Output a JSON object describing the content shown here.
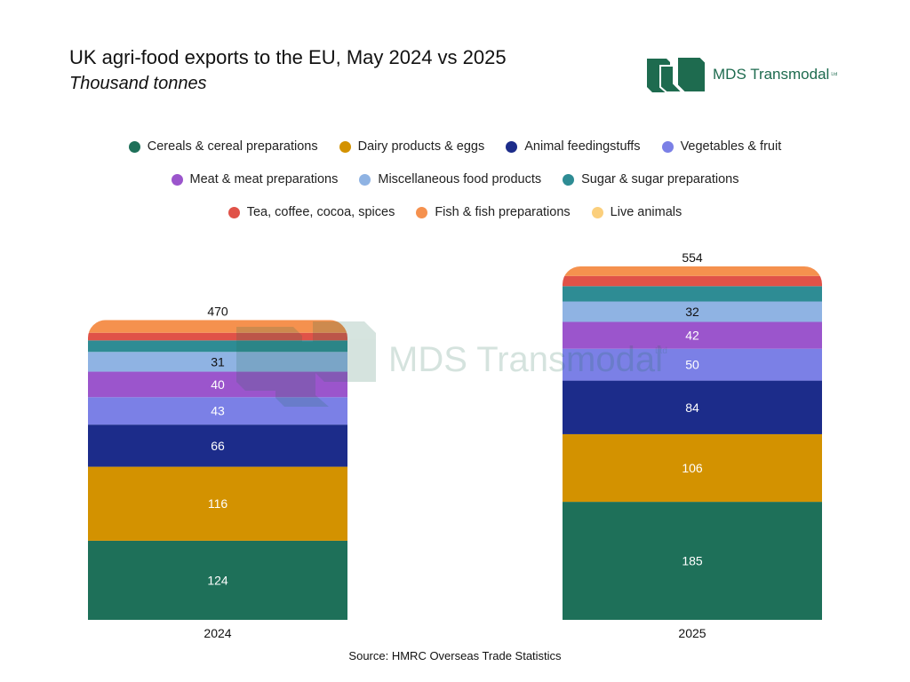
{
  "chart_data": {
    "type": "bar",
    "stacked": true,
    "title": "UK agri-food exports to the EU, May 2024 vs 2025",
    "subtitle": "Thousand tonnes",
    "source": "Source: HMRC Overseas Trade Statistics",
    "categories": [
      "2024",
      "2025"
    ],
    "totals": [
      470,
      554
    ],
    "legend_placement": "top",
    "grid": false,
    "series": [
      {
        "name": "Cereals & cereal preparations",
        "color": "#1e7059",
        "values": [
          124,
          185
        ],
        "labeled": true
      },
      {
        "name": "Dairy products & eggs",
        "color": "#d39200",
        "values": [
          116,
          106
        ],
        "labeled": true
      },
      {
        "name": "Animal feedingstuffs",
        "color": "#1c2c8a",
        "values": [
          66,
          84
        ],
        "labeled": true
      },
      {
        "name": "Vegetables & fruit",
        "color": "#7b80e6",
        "values": [
          43,
          50
        ],
        "labeled": true
      },
      {
        "name": "Meat & meat preparations",
        "color": "#9b55cc",
        "values": [
          40,
          42
        ],
        "labeled": true
      },
      {
        "name": "Miscellaneous food products",
        "color": "#8fb3e3",
        "values": [
          31,
          32
        ],
        "labeled": true
      },
      {
        "name": "Sugar & sugar preparations",
        "color": "#2e8c94",
        "values": [
          18,
          24
        ],
        "labeled": false
      },
      {
        "name": "Tea, coffee, cocoa, spices",
        "color": "#e05248",
        "values": [
          12,
          16
        ],
        "labeled": false
      },
      {
        "name": "Fish & fish preparations",
        "color": "#f5914e",
        "values": [
          20,
          15
        ],
        "labeled": false
      },
      {
        "name": "Live animals",
        "color": "#fbcf7c",
        "values": [
          0,
          0
        ],
        "labeled": false
      }
    ],
    "ylim": [
      0,
      554
    ]
  },
  "logo": {
    "text": "MDS Transmodal",
    "ltd": "Ltd",
    "color": "#1e6b4f"
  }
}
